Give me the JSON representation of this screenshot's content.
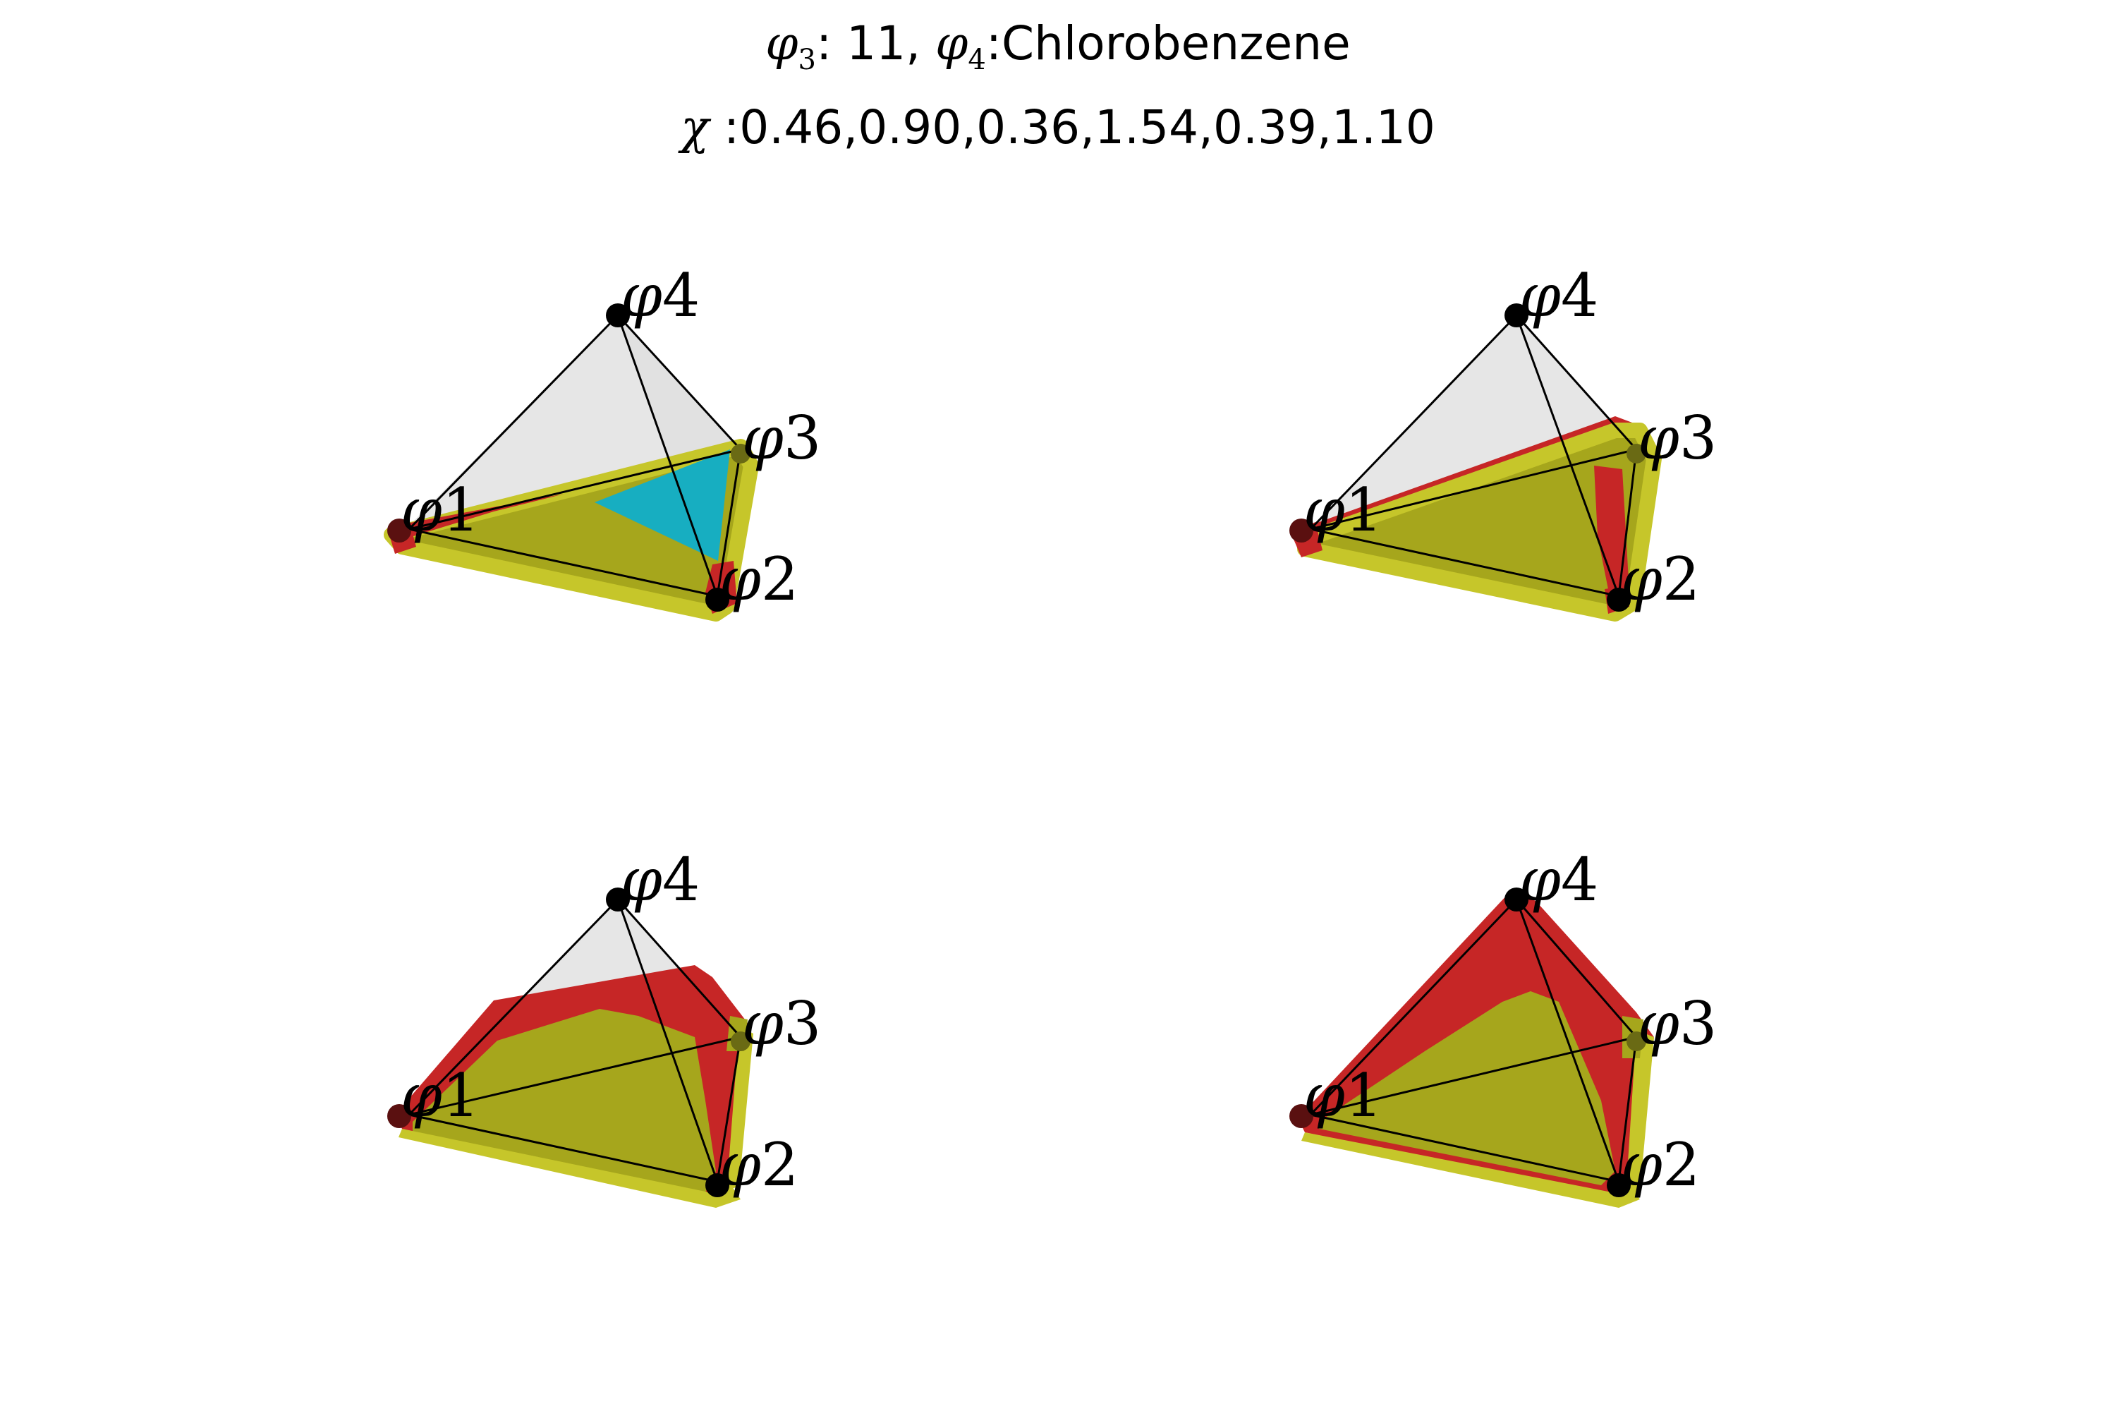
{
  "title": {
    "line1": {
      "phi3_symbol": "φ",
      "phi3_sub": "3",
      "phi3_text": ": 11, ",
      "phi4_symbol": "φ",
      "phi4_sub": "4",
      "phi4_text": ":Chlorobenzene"
    },
    "line2": {
      "chi_symbol": "χ",
      "chi_text": " :0.46,0.90,0.36,1.54,0.39,1.10"
    }
  },
  "vertex_labels": {
    "phi1": {
      "symbol": "φ",
      "index": "1"
    },
    "phi2": {
      "symbol": "φ",
      "index": "2"
    },
    "phi3": {
      "symbol": "φ",
      "index": "3"
    },
    "phi4": {
      "symbol": "φ",
      "index": "4"
    }
  },
  "panels": [
    {
      "id": "top-left",
      "phase_regions": [
        "yellow-base",
        "cyan-region",
        "red-edges"
      ]
    },
    {
      "id": "top-right",
      "phase_regions": [
        "yellow-base",
        "red-edges"
      ]
    },
    {
      "id": "bottom-left",
      "phase_regions": [
        "yellow-base",
        "red-region"
      ]
    },
    {
      "id": "bottom-right",
      "phase_regions": [
        "yellow-base",
        "red-region"
      ]
    }
  ],
  "colors": {
    "yellow": "#a6a61c",
    "yellow_edge": "#c6c62a",
    "red": "#c62626",
    "cyan": "#17aec1",
    "face_gray": "#e6e6e6",
    "edge": "#000000"
  }
}
